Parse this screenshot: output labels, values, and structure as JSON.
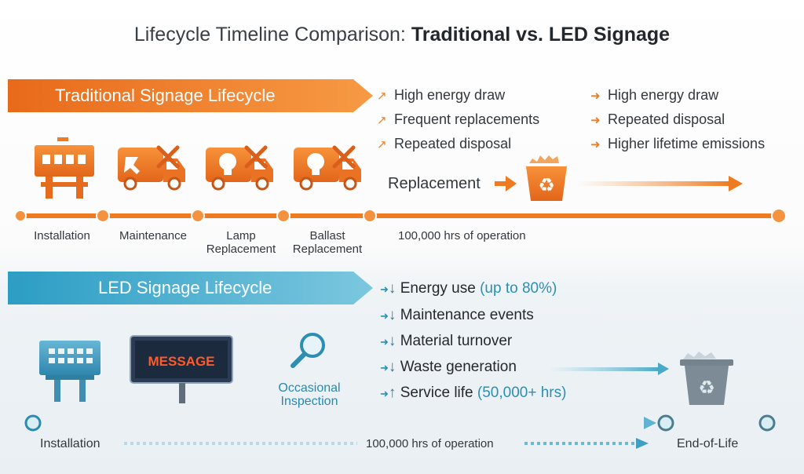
{
  "title": {
    "regular": "Lifecycle Timeline Comparison: ",
    "bold": "Traditional vs. LED Signage"
  },
  "traditional": {
    "banner": "Traditional Signage Lifecycle",
    "bullets_left": [
      "High energy draw",
      "Frequent replacements",
      "Repeated disposal"
    ],
    "bullets_right": [
      "High energy draw",
      "Repeated disposal",
      "Higher lifetime emissions"
    ],
    "replacement_label": "Replacement",
    "stages": [
      "Installation",
      "Maintenance",
      "Lamp\nReplacement",
      "Ballast\nReplacement"
    ],
    "operation_label": "100,000 hrs of operation"
  },
  "led": {
    "banner": "LED Signage Lifecycle",
    "bullets": [
      {
        "dir": "↓",
        "text": "Energy use",
        "accent": "(up to 80%)"
      },
      {
        "dir": "↓",
        "text": "Maintenance events",
        "accent": ""
      },
      {
        "dir": "↓",
        "text": "Material turnover",
        "accent": ""
      },
      {
        "dir": "↓",
        "text": "Waste generation",
        "accent": ""
      },
      {
        "dir": "↑",
        "text": "Service life",
        "accent": "(50,000+ hrs)"
      }
    ],
    "message_text": "MESSAGE",
    "inspection_label": "Occasional\nInspection",
    "start_label": "Installation",
    "operation_label": "100,000 hrs of operation",
    "end_label": "End-of-Life"
  },
  "colors": {
    "orange": "#ef7d22",
    "blue": "#2b8fb3",
    "dark_text": "#2e3338"
  },
  "icons": [
    "sign-icon",
    "service-truck-icon",
    "lamp-truck-icon",
    "ballast-truck-icon",
    "recycle-bin-icon",
    "led-sign-icon",
    "message-board-icon",
    "magnifier-icon",
    "trash-bin-icon"
  ]
}
